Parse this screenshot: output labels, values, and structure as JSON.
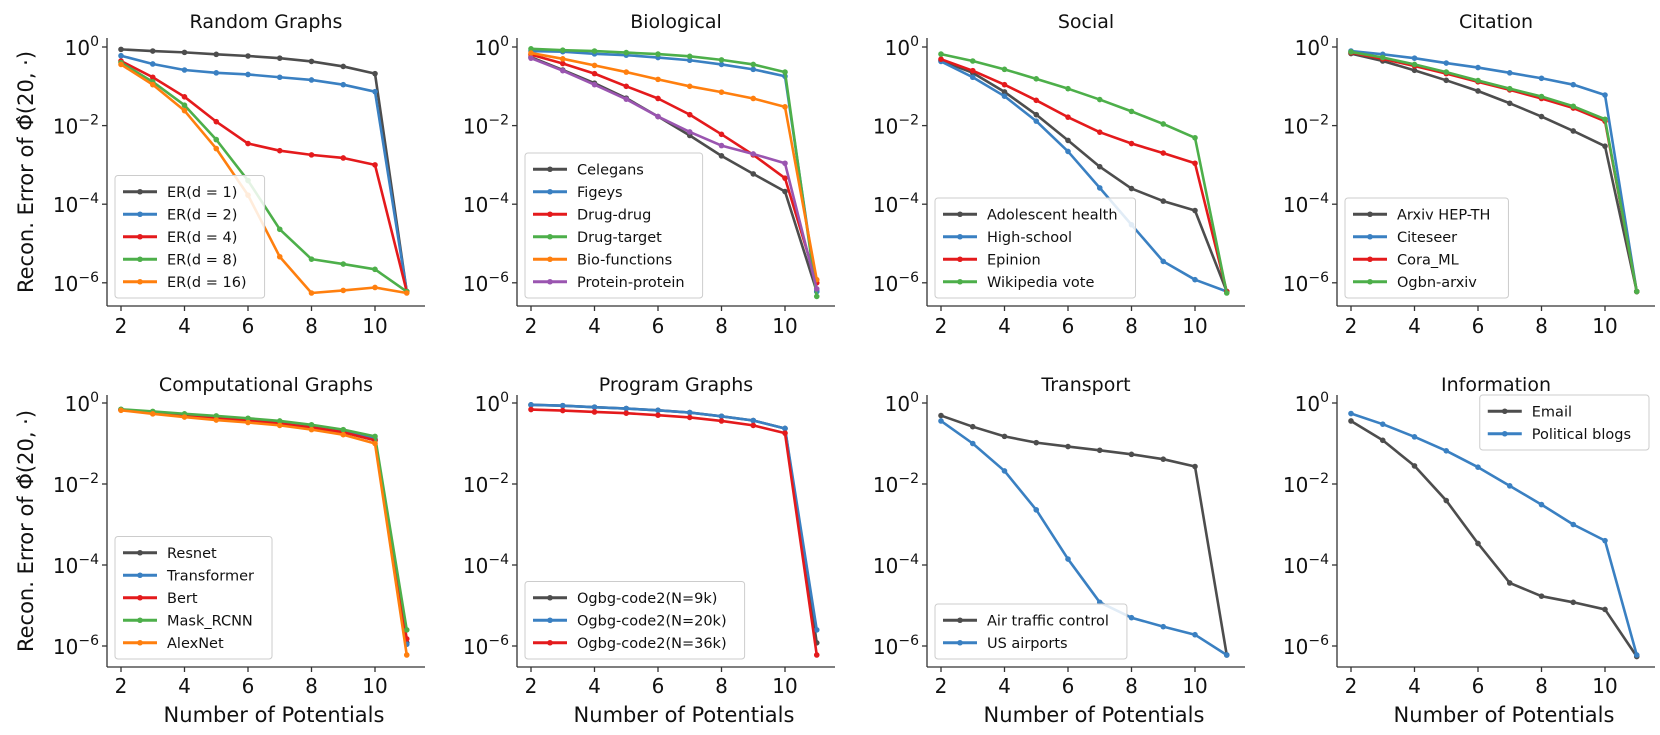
{
  "figure": {
    "ylabel": "Recon. Error of Φ̂(20, ·)",
    "xlabel": "Number of Potentials"
  },
  "colors": {
    "gray": "#4d4d4d",
    "blue": "#3a80c2",
    "red": "#e41a1c",
    "green": "#4daf4a",
    "orange": "#ff7f0e",
    "purple": "#9a55b0"
  },
  "chart_data": [
    {
      "type": "line",
      "title": "Random Graphs",
      "yscale": "log",
      "ylim": [
        3e-07,
        1.5
      ],
      "x": [
        2,
        3,
        4,
        5,
        6,
        7,
        8,
        9,
        10,
        11
      ],
      "xticks": [
        2,
        4,
        6,
        8,
        10
      ],
      "yticks_exp": [
        0,
        -2,
        -4,
        -6
      ],
      "xlabel": "",
      "ylabel": "Recon. Error of Φ̂(20, ·)",
      "legend": "lower-left",
      "series": [
        {
          "name": "ER(d = 1)",
          "color": "gray",
          "values": [
            0.87,
            0.79,
            0.73,
            0.65,
            0.59,
            0.52,
            0.43,
            0.32,
            0.21,
            6e-07
          ]
        },
        {
          "name": "ER(d = 2)",
          "color": "blue",
          "values": [
            0.6,
            0.37,
            0.26,
            0.22,
            0.2,
            0.17,
            0.145,
            0.11,
            0.073,
            6e-07
          ]
        },
        {
          "name": "ER(d = 4)",
          "color": "red",
          "values": [
            0.44,
            0.17,
            0.054,
            0.0126,
            0.0035,
            0.0023,
            0.0018,
            0.0015,
            0.001,
            6e-07
          ]
        },
        {
          "name": "ER(d = 8)",
          "color": "green",
          "values": [
            0.4,
            0.13,
            0.033,
            0.0044,
            0.0004,
            2.3e-05,
            4e-06,
            3e-06,
            2.2e-06,
            6e-07
          ]
        },
        {
          "name": "ER(d = 16)",
          "color": "orange",
          "values": [
            0.36,
            0.11,
            0.024,
            0.0026,
            0.00017,
            4.6e-06,
            5.5e-07,
            6.4e-07,
            7.6e-07,
            5.5e-07
          ]
        }
      ]
    },
    {
      "type": "line",
      "title": "Biological",
      "yscale": "log",
      "ylim": [
        3e-07,
        1.5
      ],
      "x": [
        2,
        3,
        4,
        5,
        6,
        7,
        8,
        9,
        10,
        11
      ],
      "xticks": [
        2,
        4,
        6,
        8,
        10
      ],
      "yticks_exp": [
        0,
        -2,
        -4,
        -6
      ],
      "xlabel": "",
      "ylabel": "",
      "legend": "lower-left",
      "series": [
        {
          "name": "Celegans",
          "color": "gray",
          "values": [
            0.55,
            0.26,
            0.12,
            0.05,
            0.017,
            0.0056,
            0.0017,
            0.00059,
            0.00021,
            6e-07
          ]
        },
        {
          "name": "Figeys",
          "color": "blue",
          "values": [
            0.79,
            0.76,
            0.67,
            0.62,
            0.54,
            0.46,
            0.36,
            0.27,
            0.18,
            6e-07
          ]
        },
        {
          "name": "Drug-drug",
          "color": "red",
          "values": [
            0.64,
            0.38,
            0.21,
            0.1,
            0.049,
            0.019,
            0.006,
            0.0018,
            0.00046,
            1e-06
          ]
        },
        {
          "name": "Drug-target",
          "color": "green",
          "values": [
            0.9,
            0.83,
            0.79,
            0.72,
            0.66,
            0.58,
            0.47,
            0.36,
            0.23,
            4.5e-07
          ]
        },
        {
          "name": "Bio-functions",
          "color": "orange",
          "values": [
            0.7,
            0.5,
            0.34,
            0.23,
            0.15,
            0.1,
            0.071,
            0.049,
            0.03,
            1.2e-06
          ]
        },
        {
          "name": "Protein-protein",
          "color": "purple",
          "values": [
            0.52,
            0.25,
            0.11,
            0.047,
            0.017,
            0.0069,
            0.0031,
            0.0019,
            0.0011,
            7e-07
          ]
        }
      ]
    },
    {
      "type": "line",
      "title": "Social",
      "yscale": "log",
      "ylim": [
        3e-07,
        1.5
      ],
      "x": [
        2,
        3,
        4,
        5,
        6,
        7,
        8,
        9,
        10,
        11
      ],
      "xticks": [
        2,
        4,
        6,
        8,
        10
      ],
      "yticks_exp": [
        0,
        -2,
        -4,
        -6
      ],
      "xlabel": "",
      "ylabel": "",
      "legend": "lower-left",
      "series": [
        {
          "name": "Adolescent health",
          "color": "gray",
          "values": [
            0.45,
            0.22,
            0.072,
            0.019,
            0.0042,
            0.0009,
            0.00025,
            0.00012,
            6.9e-05,
            6e-07
          ]
        },
        {
          "name": "High-school",
          "color": "blue",
          "values": [
            0.43,
            0.17,
            0.056,
            0.013,
            0.0022,
            0.00026,
            3e-05,
            3.5e-06,
            1.2e-06,
            6e-07
          ]
        },
        {
          "name": "Epinion",
          "color": "red",
          "values": [
            0.49,
            0.25,
            0.11,
            0.044,
            0.0164,
            0.0068,
            0.0035,
            0.002,
            0.0011,
            6e-07
          ]
        },
        {
          "name": "Wikipedia vote",
          "color": "green",
          "values": [
            0.66,
            0.44,
            0.27,
            0.155,
            0.087,
            0.046,
            0.023,
            0.011,
            0.0049,
            5.5e-07
          ]
        }
      ]
    },
    {
      "type": "line",
      "title": "Citation",
      "yscale": "log",
      "ylim": [
        3e-07,
        1.5
      ],
      "x": [
        2,
        3,
        4,
        5,
        6,
        7,
        8,
        9,
        10,
        11
      ],
      "xticks": [
        2,
        4,
        6,
        8,
        10
      ],
      "yticks_exp": [
        0,
        -2,
        -4,
        -6
      ],
      "xlabel": "",
      "ylabel": "",
      "legend": "lower-left",
      "series": [
        {
          "name": "Arxiv HEP-TH",
          "color": "gray",
          "values": [
            0.68,
            0.44,
            0.255,
            0.142,
            0.076,
            0.037,
            0.017,
            0.0073,
            0.003,
            6e-07
          ]
        },
        {
          "name": "Citeseer",
          "color": "blue",
          "values": [
            0.79,
            0.65,
            0.52,
            0.39,
            0.3,
            0.22,
            0.16,
            0.11,
            0.06,
            6e-07
          ]
        },
        {
          "name": "Cora_ML",
          "color": "red",
          "values": [
            0.72,
            0.5,
            0.33,
            0.21,
            0.13,
            0.081,
            0.049,
            0.028,
            0.013,
            6e-07
          ]
        },
        {
          "name": "Ogbn-arxiv",
          "color": "green",
          "values": [
            0.75,
            0.54,
            0.36,
            0.23,
            0.14,
            0.087,
            0.055,
            0.031,
            0.0145,
            6e-07
          ]
        }
      ]
    },
    {
      "type": "line",
      "title": "Computational Graphs",
      "yscale": "log",
      "ylim": [
        3e-07,
        1.5
      ],
      "x": [
        2,
        3,
        4,
        5,
        6,
        7,
        8,
        9,
        10,
        11
      ],
      "xticks": [
        2,
        4,
        6,
        8,
        10
      ],
      "yticks_exp": [
        0,
        -2,
        -4,
        -6
      ],
      "xlabel": "Number of Potentials",
      "ylabel": "Recon. Error of Φ̂(20, ·)",
      "legend": "lower-left",
      "series": [
        {
          "name": "Resnet",
          "color": "gray",
          "values": [
            0.68,
            0.57,
            0.49,
            0.42,
            0.37,
            0.31,
            0.25,
            0.19,
            0.12,
            1.2e-06
          ]
        },
        {
          "name": "Transformer",
          "color": "blue",
          "values": [
            0.69,
            0.58,
            0.5,
            0.43,
            0.38,
            0.32,
            0.26,
            0.2,
            0.13,
            1.1e-06
          ]
        },
        {
          "name": "Bert",
          "color": "red",
          "values": [
            0.68,
            0.57,
            0.49,
            0.42,
            0.37,
            0.31,
            0.25,
            0.19,
            0.12,
            1.5e-06
          ]
        },
        {
          "name": "Mask_RCNN",
          "color": "green",
          "values": [
            0.7,
            0.62,
            0.54,
            0.48,
            0.42,
            0.36,
            0.29,
            0.22,
            0.15,
            2.5e-06
          ]
        },
        {
          "name": "AlexNet",
          "color": "orange",
          "values": [
            0.66,
            0.54,
            0.45,
            0.38,
            0.33,
            0.28,
            0.22,
            0.165,
            0.1,
            6e-07
          ]
        }
      ]
    },
    {
      "type": "line",
      "title": "Program Graphs",
      "yscale": "log",
      "ylim": [
        3e-07,
        1.5
      ],
      "x": [
        2,
        3,
        4,
        5,
        6,
        7,
        8,
        9,
        10,
        11
      ],
      "xticks": [
        2,
        4,
        6,
        8,
        10
      ],
      "yticks_exp": [
        0,
        -2,
        -4,
        -6
      ],
      "xlabel": "Number of Potentials",
      "ylabel": "",
      "legend": "lower-left",
      "series": [
        {
          "name": "Ogbg-code2(N=9k)",
          "color": "gray",
          "values": [
            0.9,
            0.86,
            0.79,
            0.73,
            0.66,
            0.58,
            0.47,
            0.37,
            0.235,
            1.2e-06
          ]
        },
        {
          "name": "Ogbg-code2(N=20k)",
          "color": "blue",
          "values": [
            0.9,
            0.86,
            0.79,
            0.73,
            0.66,
            0.58,
            0.47,
            0.37,
            0.235,
            2.5e-06
          ]
        },
        {
          "name": "Ogbg-code2(N=36k)",
          "color": "red",
          "values": [
            0.69,
            0.65,
            0.6,
            0.56,
            0.5,
            0.44,
            0.36,
            0.28,
            0.18,
            6e-07
          ]
        }
      ]
    },
    {
      "type": "line",
      "title": "Transport",
      "yscale": "log",
      "ylim": [
        3e-07,
        1.5
      ],
      "x": [
        2,
        3,
        4,
        5,
        6,
        7,
        8,
        9,
        10,
        11
      ],
      "xticks": [
        2,
        4,
        6,
        8,
        10
      ],
      "yticks_exp": [
        0,
        -2,
        -4,
        -6
      ],
      "xlabel": "Number of Potentials",
      "ylabel": "",
      "legend": "lower-left",
      "series": [
        {
          "name": "Air traffic control",
          "color": "gray",
          "values": [
            0.49,
            0.26,
            0.15,
            0.105,
            0.084,
            0.068,
            0.054,
            0.041,
            0.027,
            6e-07
          ]
        },
        {
          "name": "US airports",
          "color": "blue",
          "values": [
            0.36,
            0.1,
            0.021,
            0.0023,
            0.00014,
            1.2e-05,
            5e-06,
            3e-06,
            1.9e-06,
            6e-07
          ]
        }
      ]
    },
    {
      "type": "line",
      "title": "Information",
      "yscale": "log",
      "ylim": [
        3e-07,
        1.5
      ],
      "x": [
        2,
        3,
        4,
        5,
        6,
        7,
        8,
        9,
        10,
        11
      ],
      "xticks": [
        2,
        4,
        6,
        8,
        10
      ],
      "yticks_exp": [
        0,
        -2,
        -4,
        -6
      ],
      "xlabel": "Number of Potentials",
      "ylabel": "",
      "legend": "upper-right",
      "series": [
        {
          "name": "Email",
          "color": "gray",
          "values": [
            0.36,
            0.12,
            0.028,
            0.0039,
            0.00034,
            3.6e-05,
            1.7e-05,
            1.2e-05,
            8e-06,
            5.5e-07
          ]
        },
        {
          "name": "Political blogs",
          "color": "blue",
          "values": [
            0.55,
            0.3,
            0.146,
            0.066,
            0.026,
            0.009,
            0.0031,
            0.001,
            0.0004,
            6e-07
          ]
        }
      ]
    }
  ]
}
